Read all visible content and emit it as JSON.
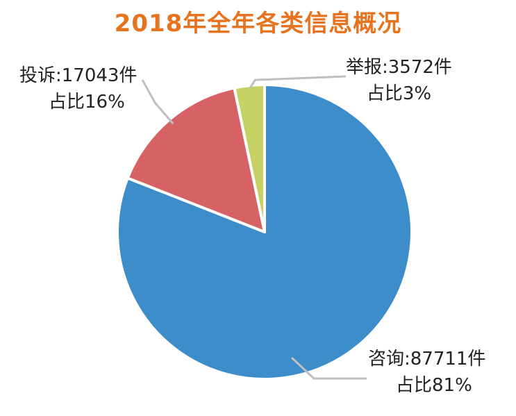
{
  "title": "2018年全年各类信息概况",
  "colors": {
    "title": "#E8731F",
    "consult": "#3E8DCB",
    "complaint": "#D66266",
    "report": "#C5D163",
    "leader": "#BFBFBF"
  },
  "labels": {
    "consult": {
      "line1": "咨询:87711件",
      "line2": "占比81%"
    },
    "complaint": {
      "line1": "投诉:17043件",
      "line2": "占比16%"
    },
    "report": {
      "line1": "举报:3572件",
      "line2": "占比3%"
    }
  },
  "chart_data": {
    "type": "pie",
    "title": "2018年全年各类信息概况",
    "slices": [
      {
        "key": "consult",
        "category": "咨询",
        "value": 87711,
        "percent": 81,
        "color": "#3E8DCB"
      },
      {
        "key": "complaint",
        "category": "投诉",
        "value": 17043,
        "percent": 16,
        "color": "#D66266"
      },
      {
        "key": "report",
        "category": "举报",
        "value": 3572,
        "percent": 3,
        "color": "#C5D163"
      }
    ]
  }
}
